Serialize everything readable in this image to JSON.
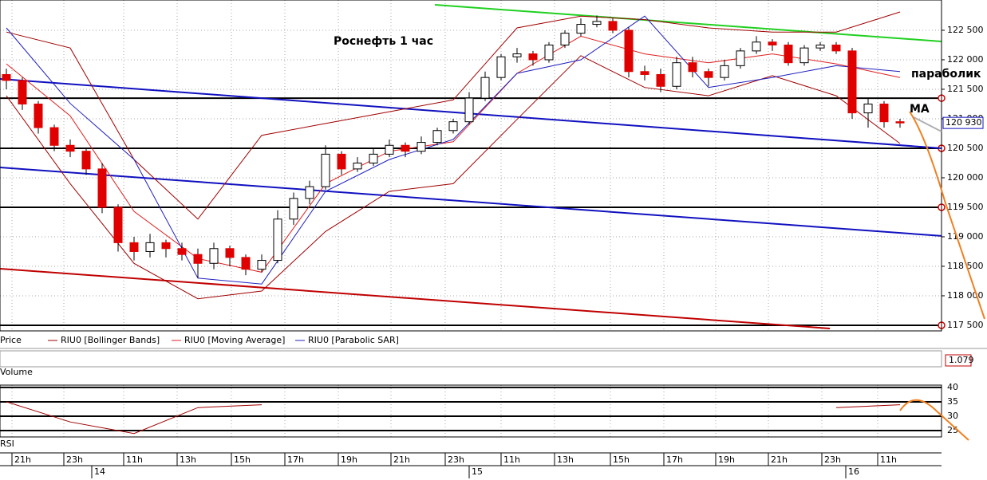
{
  "chart_data": {
    "type": "candlestick",
    "title": "Роснефть   1 час",
    "annotations": {
      "sar": "параболик",
      "ma": "MA",
      "volume_value": "1.079"
    },
    "pane_labels": {
      "volume": "Volume",
      "rsi": "RSI"
    },
    "series": {
      "name": "Price",
      "open": [
        121750,
        121650,
        121250,
        120850,
        120550,
        120450,
        120150,
        119500,
        118900,
        118750,
        118900,
        118800,
        118700,
        118550,
        118800,
        118650,
        118450,
        118600,
        119300,
        119650,
        119850,
        120400,
        120150,
        120250,
        120400,
        120550,
        120450,
        120600,
        120800,
        120950,
        121350,
        121700,
        122050,
        122100,
        122000,
        122250,
        122450,
        122600,
        122650,
        122500,
        121800,
        121750,
        121550,
        121950,
        121800,
        121700,
        121900,
        122150,
        122300,
        122250,
        121950,
        122200,
        122250,
        122150,
        121100,
        121250,
        120950
      ],
      "high": [
        121850,
        121700,
        121300,
        120900,
        120650,
        120500,
        120250,
        119550,
        119000,
        119050,
        118950,
        118900,
        118800,
        118900,
        118850,
        118700,
        118700,
        119450,
        119750,
        119950,
        120550,
        120450,
        120350,
        120500,
        120650,
        120600,
        120700,
        120850,
        121000,
        121450,
        121800,
        122100,
        122200,
        122150,
        122300,
        122500,
        122700,
        122750,
        122700,
        122550,
        121900,
        121850,
        122050,
        122050,
        121850,
        122000,
        122200,
        122400,
        122350,
        122300,
        122250,
        122300,
        122300,
        122200,
        121350,
        121300,
        121000
      ],
      "low": [
        121500,
        121150,
        120750,
        120450,
        120350,
        120050,
        119400,
        118750,
        118600,
        118650,
        118650,
        118600,
        118300,
        118450,
        118500,
        118350,
        118400,
        118550,
        119200,
        119550,
        119800,
        120050,
        120100,
        120200,
        120350,
        120350,
        120400,
        120550,
        120750,
        120900,
        121300,
        121650,
        121950,
        121900,
        121950,
        122200,
        122400,
        122550,
        122450,
        121700,
        121650,
        121450,
        121500,
        121700,
        121550,
        121650,
        121850,
        122100,
        122150,
        121900,
        121900,
        122150,
        122100,
        121000,
        120850,
        120850,
        120850
      ],
      "close": [
        121650,
        121250,
        120850,
        120550,
        120450,
        120150,
        119500,
        118900,
        118750,
        118900,
        118800,
        118700,
        118550,
        118800,
        118650,
        118450,
        118600,
        119300,
        119650,
        119850,
        120400,
        120150,
        120250,
        120400,
        120550,
        120450,
        120600,
        120800,
        120950,
        121350,
        121700,
        122050,
        122100,
        122000,
        122250,
        122450,
        122600,
        122650,
        122500,
        121800,
        121750,
        121550,
        121950,
        121800,
        121700,
        121900,
        122150,
        122300,
        122250,
        121950,
        122200,
        122250,
        122150,
        121100,
        121250,
        120950,
        120930
      ],
      "up_color": "#ffffff",
      "down_color": "#e00000"
    },
    "indicator_x": [
      0,
      4,
      8,
      12,
      16,
      20,
      24,
      28,
      32,
      36,
      40,
      44,
      48,
      52,
      56
    ],
    "indicators": [
      {
        "name": "RIU0 [Bollinger Bands]",
        "color": "#a00000",
        "upper": [
          122470,
          122200,
          120310,
          119300,
          120720,
          120920,
          121120,
          121320,
          122540,
          122740,
          122680,
          122540,
          122470,
          122470,
          122810
        ],
        "lower": [
          121390,
          119900,
          118550,
          117950,
          118080,
          119090,
          119770,
          119900,
          120990,
          122070,
          121530,
          121390,
          121730,
          121390,
          120580
        ]
      },
      {
        "name": "RIU0 [Moving Average]",
        "color": "#e02020",
        "values": [
          121930,
          121050,
          119430,
          118630,
          118400,
          119900,
          120450,
          120610,
          121770,
          122400,
          122100,
          121950,
          122100,
          121930,
          121700
        ]
      },
      {
        "name": "RIU0 [Parabolic SAR]",
        "color": "#2020c0",
        "values": [
          122540,
          121260,
          120310,
          118300,
          118200,
          119770,
          120310,
          120650,
          121770,
          122000,
          122740,
          121530,
          121700,
          121900,
          121800
        ]
      }
    ],
    "rsi": {
      "values": [
        35,
        28,
        24,
        33,
        34,
        null,
        null,
        null,
        null,
        null,
        null,
        null,
        null,
        33,
        34
      ],
      "color": "#a00000",
      "ylim": [
        22.8,
        40.8
      ],
      "yticks": [
        40,
        35,
        30,
        25
      ]
    },
    "levels": [
      121350,
      120500,
      119500,
      117500
    ],
    "trendlines": [
      {
        "color": "#1010c0",
        "from": [
          -0.4,
          121676
        ],
        "to": [
          58.6,
          120500
        ]
      },
      {
        "color": "#1010c0",
        "from": [
          -0.4,
          120176
        ],
        "to": [
          58.6,
          119014
        ]
      },
      {
        "color": "#c00000",
        "from": [
          -0.4,
          118459
        ],
        "to": [
          51.6,
          117446
        ]
      },
      {
        "color": "#20d020",
        "from": [
          26.85,
          122932
        ],
        "to": [
          58.6,
          122311
        ]
      }
    ],
    "last_price": {
      "value": 120930,
      "label": "120 930"
    },
    "xlim": [
      -0.4,
      58.6
    ],
    "ylim": [
      117405,
      123013
    ],
    "yticks": [
      {
        "value": 117500,
        "label": "117 500"
      },
      {
        "value": 118000,
        "label": "118 000"
      },
      {
        "value": 118500,
        "label": "118 500"
      },
      {
        "value": 119000,
        "label": "119 000"
      },
      {
        "value": 119500,
        "label": "119 500"
      },
      {
        "value": 120000,
        "label": "120 000"
      },
      {
        "value": 120500,
        "label": "120 500"
      },
      {
        "value": 121000,
        "label": "121 000"
      },
      {
        "value": 121500,
        "label": "121 500"
      },
      {
        "value": 122000,
        "label": "122 000"
      },
      {
        "value": 122500,
        "label": "122 500"
      }
    ],
    "xticks": [
      {
        "value": 0.35,
        "label": "21h"
      },
      {
        "value": 3.6,
        "label": "23h"
      },
      {
        "value": 7.35,
        "label": "11h"
      },
      {
        "value": 10.7,
        "label": "13h"
      },
      {
        "value": 14.1,
        "label": "15h"
      },
      {
        "value": 17.45,
        "label": "17h"
      },
      {
        "value": 20.8,
        "label": "19h"
      },
      {
        "value": 24.1,
        "label": "21h"
      },
      {
        "value": 27.5,
        "label": "23h"
      },
      {
        "value": 31,
        "label": "11h"
      },
      {
        "value": 34.35,
        "label": "13h"
      },
      {
        "value": 37.85,
        "label": "15h"
      },
      {
        "value": 41.2,
        "label": "17h"
      },
      {
        "value": 44.45,
        "label": "19h"
      },
      {
        "value": 47.75,
        "label": "21h"
      },
      {
        "value": 51.1,
        "label": "23h"
      },
      {
        "value": 54.6,
        "label": "11h"
      }
    ],
    "date_ticks": [
      {
        "value": 5.35,
        "label": "14"
      },
      {
        "value": 29,
        "label": "15"
      },
      {
        "value": 52.6,
        "label": "16"
      }
    ],
    "grid": true
  }
}
